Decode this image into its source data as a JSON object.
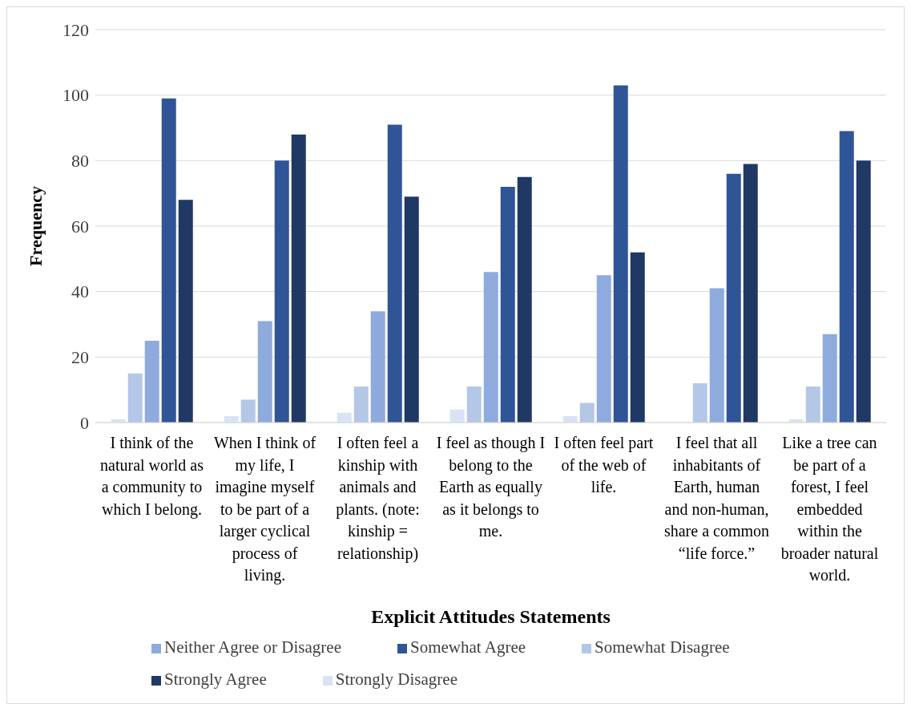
{
  "chart_data": {
    "type": "bar",
    "xlabel": "Explicit Attitudes Statements",
    "ylabel": "Frequency",
    "categories": [
      "I think of the natural world as a community to which I belong.",
      "When I think of my life, I imagine myself to be part of a larger cyclical process of living.",
      "I often feel a kinship with animals and plants. (note: kinship = relationship)",
      "I feel as though I belong to the Earth as equally as it belongs to me.",
      "I often feel part of the web of life.",
      "I feel that all inhabitants of Earth, human and non-human, share a common “life force.”",
      "Like a tree can be part of a forest, I feel embedded within the broader natural world."
    ],
    "series": [
      {
        "name": "Strongly Disagree",
        "color": "#dae3f3",
        "values": [
          1,
          2,
          3,
          4,
          2,
          0,
          1
        ]
      },
      {
        "name": "Somewhat Disagree",
        "color": "#b4c7e7",
        "values": [
          15,
          7,
          11,
          11,
          6,
          12,
          11
        ]
      },
      {
        "name": "Neither Agree or Disagree",
        "color": "#8faadc",
        "values": [
          25,
          31,
          34,
          46,
          45,
          41,
          27
        ]
      },
      {
        "name": "Somewhat Agree",
        "color": "#2f5597",
        "values": [
          99,
          80,
          91,
          72,
          103,
          76,
          89
        ]
      },
      {
        "name": "Strongly Agree",
        "color": "#203864",
        "values": [
          68,
          88,
          69,
          75,
          52,
          79,
          80
        ]
      }
    ],
    "ylim": [
      0,
      120
    ],
    "yticks": [
      0,
      20,
      40,
      60,
      80,
      100,
      120
    ],
    "grid": "y",
    "legend": "bottom"
  }
}
